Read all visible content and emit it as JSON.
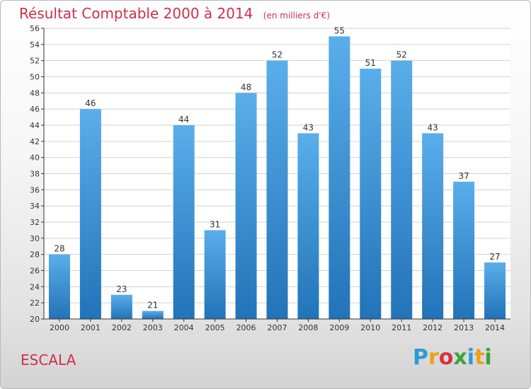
{
  "header": {
    "title": "Résultat Comptable 2000 à 2014",
    "subtitle": "(en milliers d'€)"
  },
  "footer": {
    "place": "ESCALA",
    "logo_letters": [
      "P",
      "r",
      "o",
      "x",
      "i",
      "t",
      "i"
    ],
    "logo_colors": [
      "#2b9bd6",
      "#e9a21a",
      "#d6333a",
      "#3aa43a",
      "#2b9bd6",
      "#e9a21a",
      "#3aa43a"
    ]
  },
  "colors": {
    "bar_top": "#5aaeea",
    "bar_bottom": "#2273b8",
    "grid": "#d3d3d3",
    "axis": "#333333",
    "title": "#d0304a"
  },
  "chart_data": {
    "type": "bar",
    "title": "Résultat Comptable 2000 à 2014",
    "subtitle": "(en milliers d'€)",
    "xlabel": "",
    "ylabel": "",
    "categories": [
      "2000",
      "2001",
      "2002",
      "2003",
      "2004",
      "2005",
      "2006",
      "2007",
      "2008",
      "2009",
      "2010",
      "2011",
      "2012",
      "2013",
      "2014"
    ],
    "values": [
      28,
      46,
      23,
      21,
      44,
      31,
      48,
      52,
      43,
      55,
      51,
      52,
      43,
      37,
      27
    ],
    "ylim": [
      20,
      56
    ],
    "ytick_step": 2,
    "grid": true,
    "data_labels": true
  }
}
